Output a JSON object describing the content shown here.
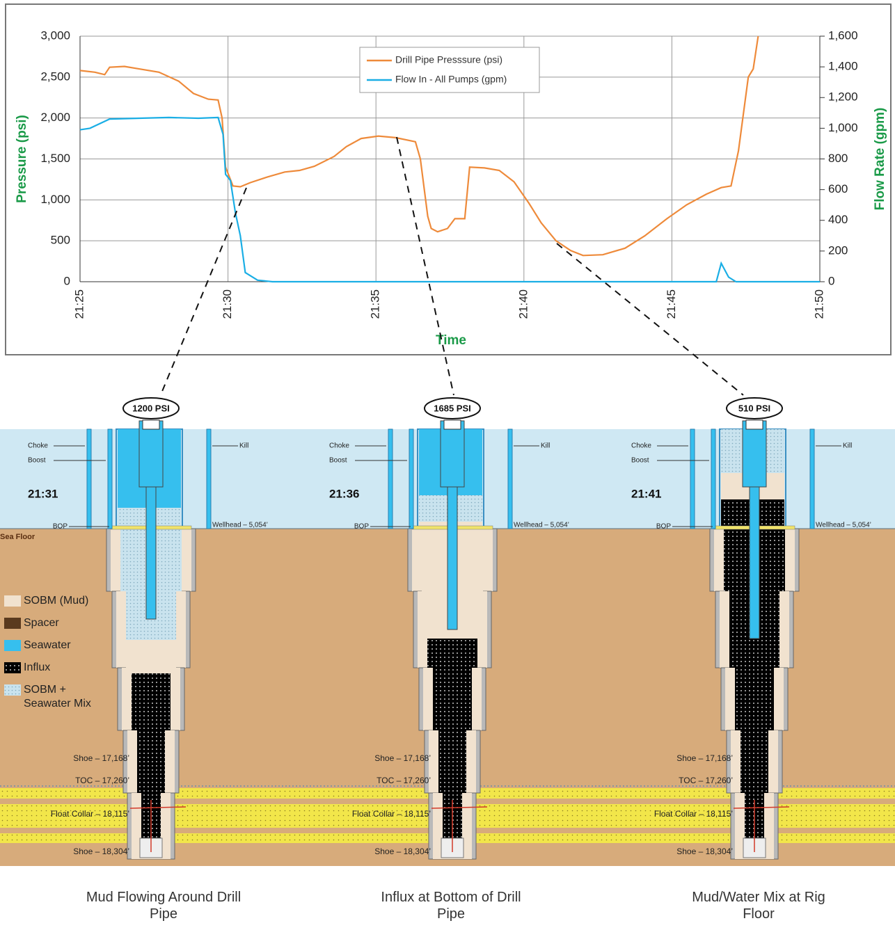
{
  "chart_data": {
    "type": "line",
    "x_label": "Time",
    "y_label": "Pressure (psi)",
    "y2_label": "Flow Rate (gpm)",
    "xlim": [
      "21:25",
      "21:50"
    ],
    "xticks": [
      "21:25",
      "21:30",
      "21:35",
      "21:40",
      "21:45",
      "21:50"
    ],
    "ylim": [
      0,
      3000
    ],
    "yticks": [
      0,
      {
        "value": 500,
        "label": "500"
      },
      {
        "value": 1000,
        "label": "1,000"
      },
      {
        "value": 1500,
        "label": "1,500"
      },
      {
        "value": 2000,
        "label": "2,000"
      },
      {
        "value": 2500,
        "label": "2,500"
      },
      {
        "value": 3000,
        "label": "3,000"
      }
    ],
    "y2lim": [
      0,
      1600
    ],
    "y2ticks": [
      0,
      200,
      400,
      600,
      800,
      {
        "value": 1000,
        "label": "1,000"
      },
      {
        "value": 1200,
        "label": "1,200"
      },
      {
        "value": 1400,
        "label": "1,400"
      },
      {
        "value": 1600,
        "label": "1,600"
      }
    ],
    "grid": true,
    "legend": "top",
    "series": [
      {
        "name": "Drill Pipe Presssure (psi)",
        "color": "#ee8a3a",
        "x": [
          "21:25:00",
          "21:25:30",
          "21:25:50",
          "21:26:00",
          "21:26:30",
          "21:27:00",
          "21:27:40",
          "21:28:20",
          "21:28:50",
          "21:29:20",
          "21:29:40",
          "21:29:48",
          "21:29:55",
          "21:30:10",
          "21:30:25",
          "21:30:45",
          "21:31:20",
          "21:31:55",
          "21:32:25",
          "21:32:55",
          "21:33:35",
          "21:34:00",
          "21:34:30",
          "21:35:05",
          "21:35:40",
          "21:36:20",
          "21:36:30",
          "21:36:45",
          "21:36:52",
          "21:37:05",
          "21:37:25",
          "21:37:40",
          "21:38:00",
          "21:38:10",
          "21:38:40",
          "21:39:10",
          "21:39:40",
          "21:40:10",
          "21:40:35",
          "21:41:05",
          "21:41:35",
          "21:42:00",
          "21:42:40",
          "21:43:25",
          "21:44:05",
          "21:44:50",
          "21:45:30",
          "21:46:10",
          "21:46:40",
          "21:47:00",
          "21:47:15",
          "21:47:35",
          "21:47:45",
          "21:47:55"
        ],
        "values": [
          2580,
          2560,
          2530,
          2620,
          2630,
          2600,
          2560,
          2450,
          2300,
          2230,
          2220,
          2000,
          1400,
          1170,
          1160,
          1210,
          1280,
          1340,
          1360,
          1410,
          1530,
          1650,
          1750,
          1780,
          1760,
          1710,
          1500,
          800,
          650,
          610,
          650,
          770,
          770,
          1400,
          1390,
          1360,
          1220,
          960,
          720,
          500,
          380,
          320,
          330,
          410,
          560,
          770,
          940,
          1070,
          1150,
          1170,
          1600,
          2500,
          2600,
          3000
        ]
      },
      {
        "name": "Flow In - All Pumps (gpm)",
        "color": "#1aaee5",
        "axis": "y2",
        "x": [
          "21:25:00",
          "21:25:20",
          "21:26:00",
          "21:27:00",
          "21:28:00",
          "21:29:00",
          "21:29:40",
          "21:29:50",
          "21:29:55",
          "21:30:05",
          "21:30:15",
          "21:30:25",
          "21:30:35",
          "21:31:00",
          "21:31:30",
          "21:46:30",
          "21:46:40",
          "21:46:55",
          "21:47:10",
          "21:50:00"
        ],
        "values": [
          990,
          1000,
          1060,
          1065,
          1070,
          1065,
          1070,
          960,
          700,
          660,
          450,
          300,
          60,
          10,
          0,
          0,
          120,
          30,
          0,
          0
        ]
      }
    ]
  },
  "diagram": {
    "well_labels": {
      "choke": "Choke",
      "boost": "Boost",
      "kill": "Kill",
      "bop": "BOP",
      "wellhead": "Wellhead – 5,054’",
      "shoe_upper": "Shoe – 17,168’",
      "toc": "TOC – 17,260’",
      "float_collar": "Float Collar – 18,115’",
      "shoe_lower": "Shoe – 18,304’"
    },
    "sea_floor": "Sea Floor",
    "legend": [
      "SOBM (Mud)",
      "Spacer",
      "Seawater",
      "Influx",
      "SOBM + Seawater Mix"
    ],
    "panels": [
      {
        "time": "21:31",
        "pressure": "1200 PSI",
        "caption": "Mud Flowing Around Drill Pipe"
      },
      {
        "time": "21:36",
        "pressure": "1685 PSI",
        "caption": "Influx at Bottom of Drill Pipe"
      },
      {
        "time": "21:41",
        "pressure": "510 PSI",
        "caption": "Mud/Water Mix at Rig Floor"
      }
    ]
  }
}
